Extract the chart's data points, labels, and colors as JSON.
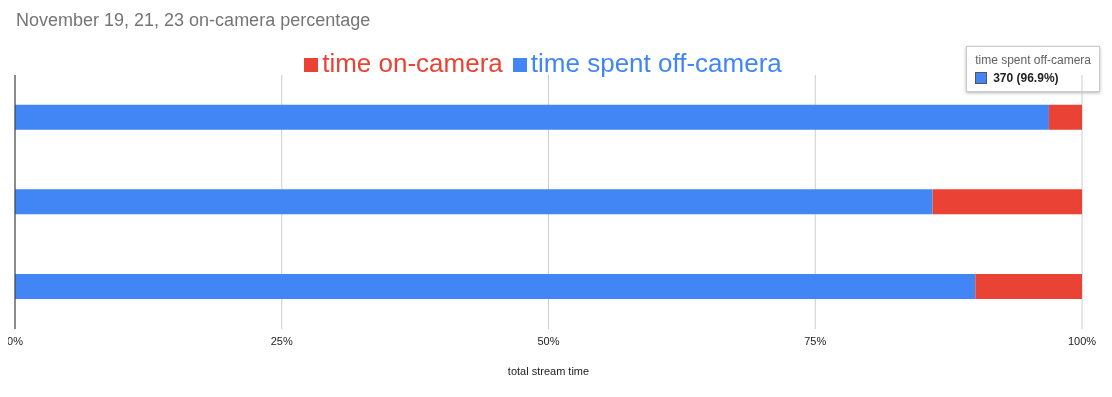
{
  "chart_data": {
    "type": "bar",
    "title": "November 19, 21, 23 on-camera percentage",
    "xlabel": "total stream time",
    "orientation": "horizontal",
    "stacked": true,
    "categories": [
      null,
      null,
      null
    ],
    "series": [
      {
        "name": "time spent off-camera",
        "color": "#4285f4",
        "values": [
          96.9,
          86,
          90
        ]
      },
      {
        "name": "time on-camera",
        "color": "#ea4335",
        "values": [
          3.1,
          14,
          10
        ]
      }
    ],
    "xlim": [
      0,
      100
    ],
    "xticks": [
      {
        "value": 0,
        "label": "0%"
      },
      {
        "value": 25,
        "label": "25%"
      },
      {
        "value": 50,
        "label": "50%"
      },
      {
        "value": 75,
        "label": "75%"
      },
      {
        "value": 100,
        "label": "100%"
      }
    ],
    "grid": "x",
    "legend": "top",
    "annotations": [
      "time spent off-camera",
      "370 (96.9%)"
    ]
  }
}
